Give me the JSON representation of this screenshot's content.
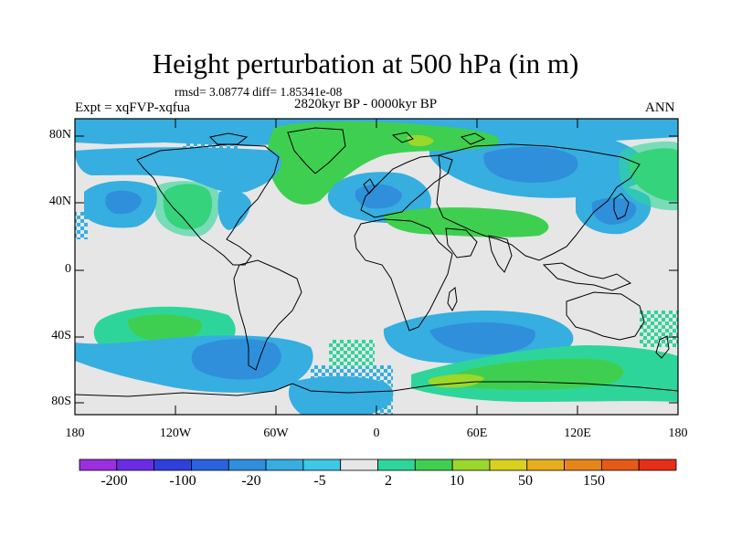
{
  "title": "Height perturbation at 500 hPa (in m)",
  "stats": "rmsd= 3.08774 diff= 1.85341e-08",
  "experiment": "Expt = xqFVP-xqfua",
  "period": "2820kyr BP - 0000kyr BP",
  "season": "ANN",
  "axes": {
    "y_ticks": [
      "80N",
      "40N",
      "0",
      "40S",
      "80S"
    ],
    "x_ticks": [
      "180",
      "120W",
      "60W",
      "0",
      "60E",
      "120E",
      "180"
    ]
  },
  "colorbar": {
    "labels": [
      "-200",
      "-100",
      "-20",
      "-5",
      "2",
      "10",
      "50",
      "150"
    ],
    "colors": [
      "#9b2fe0",
      "#6b2ce6",
      "#2f3fdc",
      "#2a63e0",
      "#2f8fdb",
      "#36aee0",
      "#3cc8e6",
      "#e6e6e6",
      "#2ed59a",
      "#3fcf50",
      "#9ad829",
      "#d8d21e",
      "#e6ae1c",
      "#e6861a",
      "#e65a18",
      "#e62f17"
    ]
  },
  "colors": {
    "neutral": "#e6e6e6",
    "sky": "#36aee0",
    "blue": "#2f8fdb",
    "teal": "#2ed59a",
    "green": "#3fcf50",
    "lime": "#9ad829"
  }
}
